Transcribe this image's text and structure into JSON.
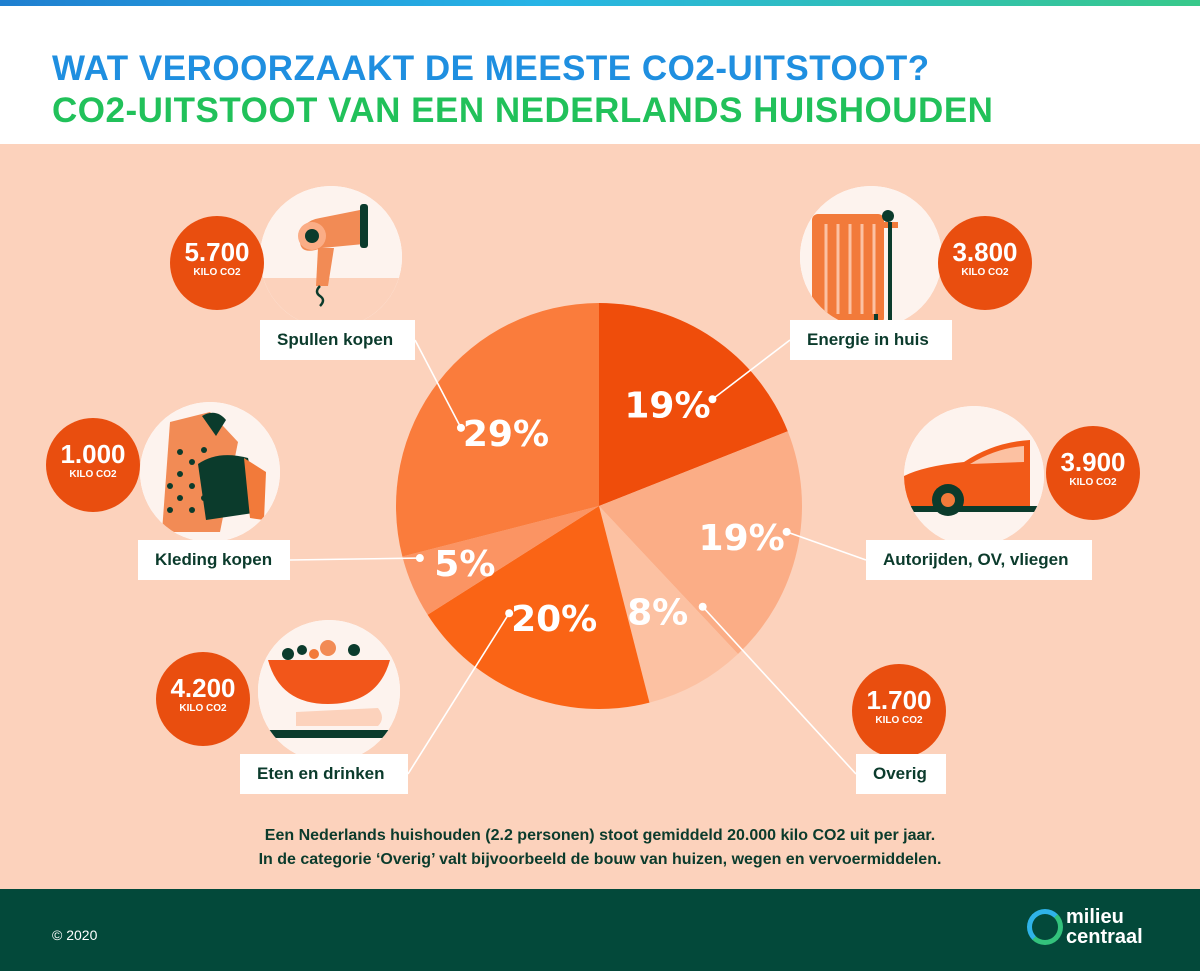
{
  "header": {
    "title": "WAT VEROORZAAKT DE MEESTE CO2-UITSTOOT?",
    "subtitle": "CO2-UITSTOOT VAN EEN NEDERLANDS HUISHOUDEN"
  },
  "chart_data": {
    "type": "pie",
    "slices": [
      {
        "label": "Energie in huis",
        "value": 19,
        "display": "19%",
        "amount": "3.800",
        "unit": "KILO CO2",
        "color": "#ef4d0b",
        "icon": "radiator-icon"
      },
      {
        "label": "Autorijden, OV, vliegen",
        "value": 19,
        "display": "19%",
        "amount": "3.900",
        "unit": "KILO CO2",
        "color": "#fbad86",
        "icon": "car-icon"
      },
      {
        "label": "Overig",
        "value": 8,
        "display": "8%",
        "amount": "1.700",
        "unit": "KILO CO2",
        "color": "#fcc1a2",
        "icon": ""
      },
      {
        "label": "Eten en drinken",
        "value": 20,
        "display": "20%",
        "amount": "4.200",
        "unit": "KILO CO2",
        "color": "#fa6415",
        "icon": "food-bowl-icon"
      },
      {
        "label": "Kleding kopen",
        "value": 5,
        "display": "5%",
        "amount": "1.000",
        "unit": "KILO CO2",
        "color": "#fb9463",
        "icon": "clothing-icon"
      },
      {
        "label": "Spullen kopen",
        "value": 29,
        "display": "29%",
        "amount": "5.700",
        "unit": "KILO CO2",
        "color": "#fa7c3c",
        "icon": "hair-dryer-icon"
      }
    ]
  },
  "footnote": {
    "line1": "Een Nederlands huishouden (2.2 personen) stoot gemiddeld 20.000 kilo CO2 uit per jaar.",
    "line2": "In de categorie ‘Overig’ valt bijvoorbeeld de bouw van huizen, wegen en vervoermiddelen."
  },
  "footer": {
    "copyright": "© 2020",
    "logo_line1": "milieu",
    "logo_line2": "centraal"
  },
  "colors": {
    "title_blue": "#1f8fe0",
    "subtitle_green": "#21c15a",
    "background_peach": "#fcd2bc",
    "badge_orange": "#e94e0f",
    "footer_green": "#03493a",
    "text_dark_green": "#0b3b2c"
  }
}
